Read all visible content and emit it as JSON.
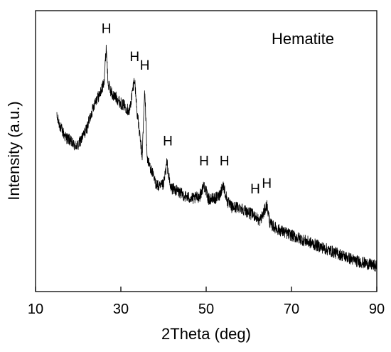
{
  "chart_data": {
    "type": "line",
    "title": "",
    "xlabel": "2Theta (deg)",
    "ylabel": "Intensity (a.u.)",
    "xlim": [
      10,
      90
    ],
    "ylim": [
      0,
      100
    ],
    "x_ticks": [
      10,
      30,
      50,
      70,
      90
    ],
    "y_ticks": [],
    "grid": false,
    "legend": {
      "text": "Hematite",
      "placement": "top-right"
    },
    "series": [
      {
        "name": "Hematite",
        "color": "#000000",
        "x": [
          15,
          16,
          17,
          18,
          19,
          20,
          21,
          22,
          23,
          24,
          25,
          26,
          26.6,
          27,
          28,
          29,
          30,
          31,
          32,
          32.6,
          33.2,
          33.8,
          34.4,
          35,
          35.6,
          36.2,
          37,
          38,
          39,
          40,
          40.8,
          41.6,
          43,
          45,
          47,
          48.5,
          49.5,
          50.5,
          52,
          53,
          54,
          55,
          56,
          58,
          60,
          61.5,
          62.5,
          63.5,
          64.2,
          65,
          67,
          70,
          75,
          80,
          85,
          90
        ],
        "y": [
          62,
          58,
          55,
          54,
          52,
          52,
          55,
          58,
          63,
          68,
          70,
          74,
          87,
          74,
          70,
          69,
          67,
          66,
          64,
          70,
          76,
          64,
          56,
          48,
          72,
          47,
          44,
          39,
          37,
          38,
          46,
          37,
          36,
          34,
          33,
          34,
          38,
          33,
          33,
          34,
          38,
          32,
          30,
          30,
          28,
          27,
          25,
          28,
          31,
          24,
          22,
          20,
          17,
          14,
          11,
          9
        ]
      }
    ],
    "annotations": [
      {
        "text": "H",
        "x": 26.6,
        "y": 92
      },
      {
        "text": "H",
        "x": 33.2,
        "y": 82
      },
      {
        "text": "H",
        "x": 35.6,
        "y": 79
      },
      {
        "text": "H",
        "x": 41.0,
        "y": 52
      },
      {
        "text": "H",
        "x": 49.5,
        "y": 45
      },
      {
        "text": "H",
        "x": 54.3,
        "y": 45
      },
      {
        "text": "H",
        "x": 61.5,
        "y": 35
      },
      {
        "text": "H",
        "x": 64.2,
        "y": 37
      }
    ]
  }
}
